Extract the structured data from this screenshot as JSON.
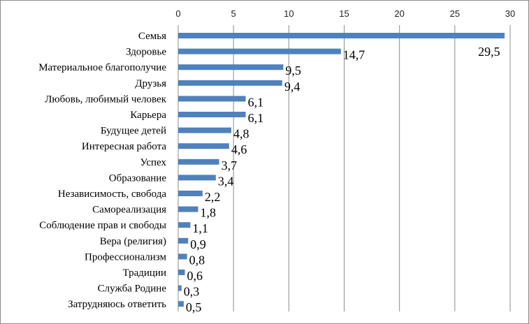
{
  "chart_data": {
    "type": "bar",
    "orientation": "horizontal",
    "categories": [
      "Семья",
      "Здоровье",
      "Материальное благополучие",
      "Друзья",
      "Любовь, любимый человек",
      "Карьера",
      "Будущее детей",
      "Интересная работа",
      "Успех",
      "Образование",
      "Независимость, свобода",
      "Самореализация",
      "Соблюдение прав и свободы",
      "Вера (религия)",
      "Профессионализм",
      "Традиции",
      "Служба Родине",
      "Затрудняюсь ответить"
    ],
    "values": [
      29.5,
      14.7,
      9.5,
      9.4,
      6.1,
      6.1,
      4.8,
      4.6,
      3.7,
      3.4,
      2.2,
      1.8,
      1.1,
      0.9,
      0.8,
      0.6,
      0.3,
      0.5
    ],
    "data_labels": [
      "29,5",
      "14,7",
      "9,5",
      "9,4",
      "6,1",
      "6,1",
      "4,8",
      "4,6",
      "3,7",
      "3,4",
      "2,2",
      "1,8",
      "1,1",
      "0,9",
      "0,8",
      "0,6",
      "0,3",
      "0,5"
    ],
    "xlim": [
      0,
      30
    ],
    "x_ticks": [
      0,
      5,
      10,
      15,
      20,
      25,
      30
    ],
    "x_tick_labels": [
      "0",
      "5",
      "10",
      "15",
      "20",
      "25",
      "30"
    ],
    "x_axis_position": "top",
    "grid": "vertical",
    "legend": "none",
    "title": "",
    "xlabel": "",
    "ylabel": "",
    "bar_color": "#4f81bd"
  }
}
